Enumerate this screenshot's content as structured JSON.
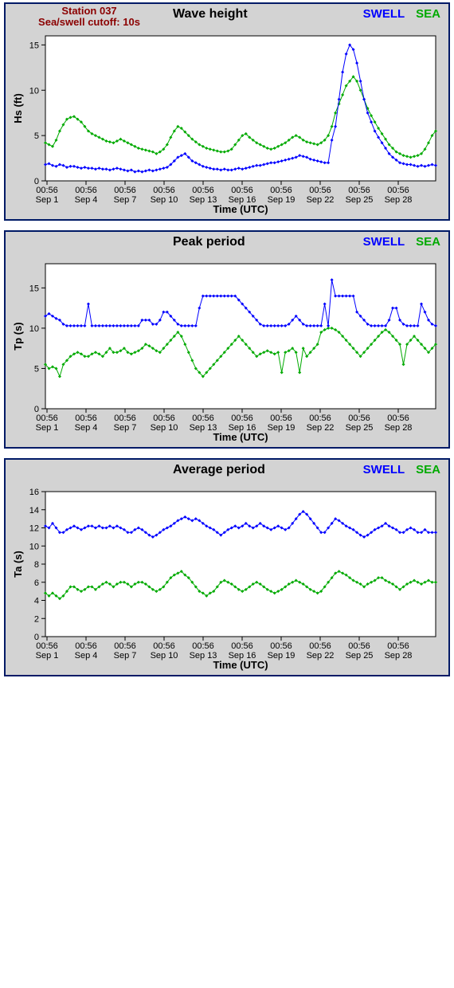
{
  "page": {
    "station_line1": "Station 037",
    "station_line2": "Sea/swell cutoff: 10s",
    "legend_swell": "SWELL",
    "legend_sea": "SEA",
    "x_axis_label": "Time (UTC)",
    "x_ticks_top": [
      "00:56",
      "00:56",
      "00:56",
      "00:56",
      "00:56",
      "00:56",
      "00:56",
      "00:56",
      "00:56",
      "00:56"
    ],
    "x_ticks_bot": [
      "Sep 1",
      "Sep 4",
      "Sep 7",
      "Sep 10",
      "Sep 13",
      "Sep 16",
      "Sep 19",
      "Sep 22",
      "Sep 25",
      "Sep 28"
    ],
    "colors": {
      "swell": "#0000ff",
      "sea": "#00aa00",
      "panel_bg": "#d3d3d3",
      "plot_bg": "#ffffff",
      "border": "#001a66",
      "station": "#8b0000"
    },
    "marker_size": 2,
    "line_width": 1
  },
  "panels": [
    {
      "id": "hs",
      "title": "Wave height",
      "show_station": true,
      "y_label": "Hs (ft)",
      "y_min": 0,
      "y_max": 16,
      "y_ticks": [
        0,
        5,
        10,
        15
      ],
      "swell": [
        1.8,
        1.9,
        1.7,
        1.6,
        1.8,
        1.7,
        1.5,
        1.6,
        1.6,
        1.5,
        1.4,
        1.5,
        1.4,
        1.4,
        1.3,
        1.4,
        1.3,
        1.3,
        1.2,
        1.3,
        1.4,
        1.3,
        1.2,
        1.1,
        1.2,
        1.0,
        1.1,
        1.0,
        1.1,
        1.2,
        1.1,
        1.2,
        1.3,
        1.4,
        1.5,
        1.8,
        2.2,
        2.6,
        2.8,
        3.0,
        2.6,
        2.2,
        2.0,
        1.8,
        1.6,
        1.5,
        1.4,
        1.3,
        1.3,
        1.2,
        1.3,
        1.2,
        1.2,
        1.3,
        1.4,
        1.3,
        1.4,
        1.5,
        1.6,
        1.7,
        1.7,
        1.8,
        1.9,
        2.0,
        2.0,
        2.1,
        2.2,
        2.3,
        2.4,
        2.5,
        2.6,
        2.8,
        2.7,
        2.6,
        2.4,
        2.3,
        2.2,
        2.1,
        2.0,
        2.0,
        4.5,
        6.0,
        9.0,
        12.0,
        14.0,
        15.0,
        14.5,
        13.0,
        11.0,
        9.0,
        7.5,
        6.5,
        5.5,
        4.8,
        4.2,
        3.6,
        3.0,
        2.6,
        2.3,
        2.0,
        1.9,
        1.8,
        1.8,
        1.7,
        1.6,
        1.7,
        1.6,
        1.7,
        1.8,
        1.7
      ],
      "sea": [
        4.2,
        4.0,
        3.8,
        4.5,
        5.5,
        6.2,
        6.8,
        7.0,
        7.1,
        6.8,
        6.5,
        6.0,
        5.5,
        5.2,
        5.0,
        4.8,
        4.6,
        4.4,
        4.3,
        4.2,
        4.4,
        4.6,
        4.4,
        4.2,
        4.0,
        3.8,
        3.6,
        3.5,
        3.4,
        3.3,
        3.2,
        3.0,
        3.2,
        3.5,
        4.0,
        4.8,
        5.5,
        6.0,
        5.8,
        5.4,
        5.0,
        4.6,
        4.3,
        4.0,
        3.8,
        3.6,
        3.5,
        3.4,
        3.3,
        3.2,
        3.2,
        3.3,
        3.5,
        4.0,
        4.5,
        5.0,
        5.2,
        4.8,
        4.5,
        4.2,
        4.0,
        3.8,
        3.6,
        3.5,
        3.6,
        3.8,
        4.0,
        4.2,
        4.5,
        4.8,
        5.0,
        4.8,
        4.5,
        4.3,
        4.2,
        4.1,
        4.0,
        4.2,
        4.5,
        5.0,
        6.0,
        7.5,
        8.5,
        9.5,
        10.5,
        11.0,
        11.5,
        11.0,
        10.0,
        9.0,
        8.0,
        7.2,
        6.5,
        5.8,
        5.2,
        4.6,
        4.0,
        3.6,
        3.2,
        3.0,
        2.8,
        2.7,
        2.6,
        2.7,
        2.8,
        3.0,
        3.5,
        4.2,
        5.0,
        5.5
      ]
    },
    {
      "id": "tp",
      "title": "Peak period",
      "show_station": false,
      "y_label": "Tp (s)",
      "y_min": 0,
      "y_max": 18,
      "y_ticks": [
        0,
        5,
        10,
        15
      ],
      "swell": [
        11.5,
        11.8,
        11.5,
        11.2,
        11.0,
        10.5,
        10.3,
        10.3,
        10.3,
        10.3,
        10.3,
        10.3,
        13.0,
        10.3,
        10.3,
        10.3,
        10.3,
        10.3,
        10.3,
        10.3,
        10.3,
        10.3,
        10.3,
        10.3,
        10.3,
        10.3,
        10.3,
        11.0,
        11.0,
        11.0,
        10.5,
        10.5,
        11.0,
        12.0,
        12.0,
        11.5,
        11.0,
        10.5,
        10.3,
        10.3,
        10.3,
        10.3,
        10.3,
        12.5,
        14.0,
        14.0,
        14.0,
        14.0,
        14.0,
        14.0,
        14.0,
        14.0,
        14.0,
        14.0,
        13.5,
        13.0,
        12.5,
        12.0,
        11.5,
        11.0,
        10.5,
        10.3,
        10.3,
        10.3,
        10.3,
        10.3,
        10.3,
        10.3,
        10.5,
        11.0,
        11.5,
        11.0,
        10.5,
        10.3,
        10.3,
        10.3,
        10.3,
        10.3,
        13.0,
        10.3,
        16.0,
        14.0,
        14.0,
        14.0,
        14.0,
        14.0,
        14.0,
        12.0,
        11.5,
        11.0,
        10.5,
        10.3,
        10.3,
        10.3,
        10.3,
        10.3,
        11.0,
        12.5,
        12.5,
        11.0,
        10.5,
        10.3,
        10.3,
        10.3,
        10.3,
        13.0,
        12.0,
        11.0,
        10.5,
        10.3
      ],
      "sea": [
        5.5,
        5.0,
        5.2,
        5.0,
        4.0,
        5.5,
        6.0,
        6.5,
        6.8,
        7.0,
        6.8,
        6.5,
        6.5,
        6.8,
        7.0,
        6.8,
        6.5,
        7.0,
        7.5,
        7.0,
        7.0,
        7.2,
        7.5,
        7.0,
        6.8,
        7.0,
        7.2,
        7.5,
        8.0,
        7.8,
        7.5,
        7.2,
        7.0,
        7.5,
        8.0,
        8.5,
        9.0,
        9.5,
        9.0,
        8.0,
        7.0,
        6.0,
        5.0,
        4.5,
        4.0,
        4.5,
        5.0,
        5.5,
        6.0,
        6.5,
        7.0,
        7.5,
        8.0,
        8.5,
        9.0,
        8.5,
        8.0,
        7.5,
        7.0,
        6.5,
        6.8,
        7.0,
        7.2,
        7.0,
        6.8,
        7.0,
        4.5,
        7.0,
        7.2,
        7.5,
        7.0,
        4.5,
        7.5,
        6.5,
        7.0,
        7.5,
        8.0,
        9.5,
        9.8,
        10.0,
        10.0,
        9.8,
        9.5,
        9.0,
        8.5,
        8.0,
        7.5,
        7.0,
        6.5,
        7.0,
        7.5,
        8.0,
        8.5,
        9.0,
        9.5,
        9.8,
        9.5,
        9.0,
        8.5,
        8.0,
        5.5,
        8.0,
        8.5,
        9.0,
        8.5,
        8.0,
        7.5,
        7.0,
        7.5,
        8.0
      ]
    },
    {
      "id": "ta",
      "title": "Average period",
      "show_station": false,
      "y_label": "Ta (s)",
      "y_min": 0,
      "y_max": 16,
      "y_ticks": [
        0,
        2,
        4,
        6,
        8,
        10,
        12,
        14,
        16
      ],
      "swell": [
        12.2,
        12.0,
        12.5,
        12.0,
        11.5,
        11.5,
        11.8,
        12.0,
        12.2,
        12.0,
        11.8,
        12.0,
        12.2,
        12.2,
        12.0,
        12.2,
        12.0,
        12.0,
        12.2,
        12.0,
        12.2,
        12.0,
        11.8,
        11.5,
        11.5,
        11.8,
        12.0,
        11.8,
        11.5,
        11.2,
        11.0,
        11.2,
        11.5,
        11.8,
        12.0,
        12.2,
        12.5,
        12.8,
        13.0,
        13.2,
        13.0,
        12.8,
        13.0,
        12.8,
        12.5,
        12.2,
        12.0,
        11.8,
        11.5,
        11.2,
        11.5,
        11.8,
        12.0,
        12.2,
        12.0,
        12.2,
        12.5,
        12.2,
        12.0,
        12.2,
        12.5,
        12.2,
        12.0,
        11.8,
        12.0,
        12.2,
        12.0,
        11.8,
        12.0,
        12.5,
        13.0,
        13.5,
        13.8,
        13.5,
        13.0,
        12.5,
        12.0,
        11.5,
        11.5,
        12.0,
        12.5,
        13.0,
        12.8,
        12.5,
        12.2,
        12.0,
        11.8,
        11.5,
        11.2,
        11.0,
        11.2,
        11.5,
        11.8,
        12.0,
        12.2,
        12.5,
        12.2,
        12.0,
        11.8,
        11.5,
        11.5,
        11.8,
        12.0,
        11.8,
        11.5,
        11.5,
        11.8,
        11.5,
        11.5,
        11.5
      ],
      "sea": [
        4.8,
        4.5,
        4.8,
        4.5,
        4.2,
        4.5,
        5.0,
        5.5,
        5.5,
        5.2,
        5.0,
        5.2,
        5.5,
        5.5,
        5.2,
        5.5,
        5.8,
        6.0,
        5.8,
        5.5,
        5.8,
        6.0,
        6.0,
        5.8,
        5.5,
        5.8,
        6.0,
        6.0,
        5.8,
        5.5,
        5.2,
        5.0,
        5.2,
        5.5,
        6.0,
        6.5,
        6.8,
        7.0,
        7.2,
        6.8,
        6.5,
        6.0,
        5.5,
        5.0,
        4.8,
        4.5,
        4.8,
        5.0,
        5.5,
        6.0,
        6.2,
        6.0,
        5.8,
        5.5,
        5.2,
        5.0,
        5.2,
        5.5,
        5.8,
        6.0,
        5.8,
        5.5,
        5.2,
        5.0,
        4.8,
        5.0,
        5.2,
        5.5,
        5.8,
        6.0,
        6.2,
        6.0,
        5.8,
        5.5,
        5.2,
        5.0,
        4.8,
        5.0,
        5.5,
        6.0,
        6.5,
        7.0,
        7.2,
        7.0,
        6.8,
        6.5,
        6.2,
        6.0,
        5.8,
        5.5,
        5.8,
        6.0,
        6.2,
        6.5,
        6.5,
        6.2,
        6.0,
        5.8,
        5.5,
        5.2,
        5.5,
        5.8,
        6.0,
        6.2,
        6.0,
        5.8,
        6.0,
        6.2,
        6.0,
        6.0
      ]
    }
  ]
}
